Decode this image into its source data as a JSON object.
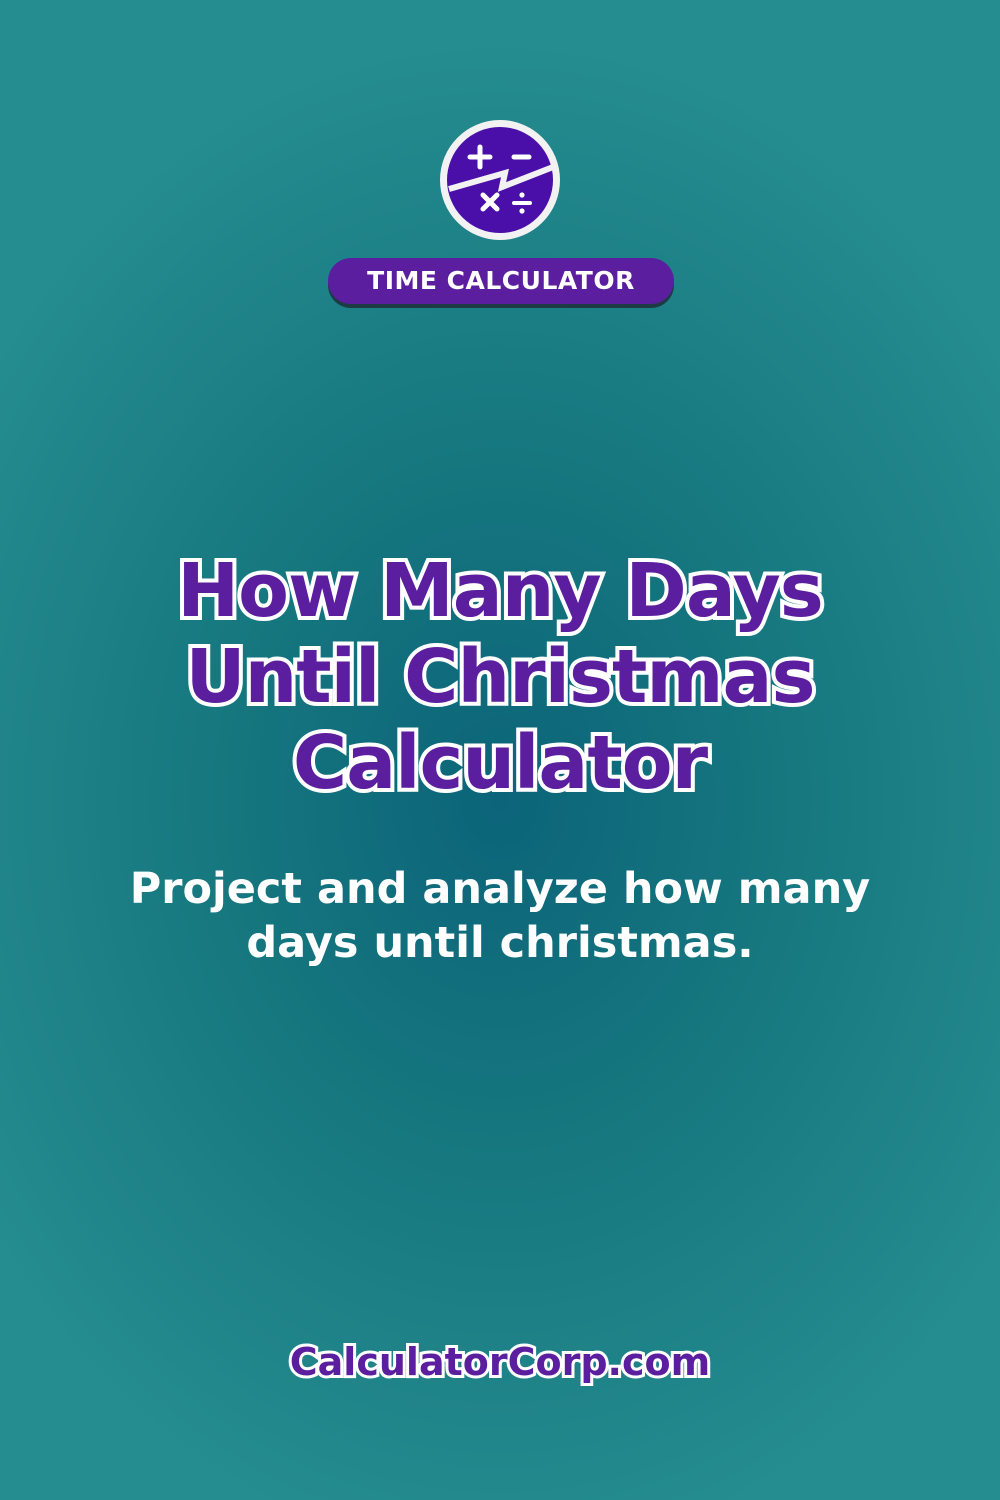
{
  "brand": {
    "logo_icon": "calculator-operators-icon",
    "accent": "#5a1e9e"
  },
  "badge": {
    "label": "TIME CALCULATOR"
  },
  "title": {
    "lines": [
      "How Many Days",
      "Until Christmas",
      "Calculator"
    ]
  },
  "subtitle": {
    "lines": [
      "Project and analyze how many",
      "days until christmas."
    ]
  },
  "footer": {
    "site": "CalculatorCorp.com"
  }
}
